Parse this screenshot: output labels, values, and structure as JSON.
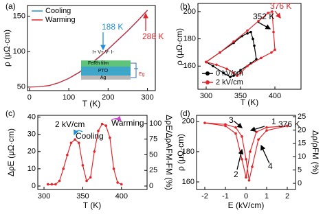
{
  "chart_data": [
    {
      "type": "line",
      "panel_label": "(a)",
      "x_label": "T (K)",
      "y_label": "ρ (μΩ·cm)",
      "xlim": [
        -5,
        320
      ],
      "ylim": [
        45,
        165
      ],
      "xticks": [
        0,
        100,
        200,
        300
      ],
      "yticks": [
        50,
        100,
        150
      ],
      "legend": "upper left",
      "series": [
        {
          "name": "Cooling",
          "color": "#1f8fd6",
          "x": [
            0,
            25,
            50,
            75,
            100,
            125,
            150,
            175,
            200,
            225,
            250,
            275,
            300
          ],
          "values": [
            50,
            50.5,
            52,
            56,
            62,
            70,
            80,
            91,
            103,
            116,
            129,
            143,
            158
          ]
        },
        {
          "name": "Warming",
          "color": "#e0262b",
          "x": [
            0,
            25,
            50,
            75,
            100,
            125,
            150,
            175,
            200,
            225,
            250,
            275,
            300
          ],
          "values": [
            50,
            50.6,
            52.2,
            56.3,
            62.4,
            70.5,
            80.5,
            91.5,
            103.5,
            116.5,
            129.5,
            143.5,
            158.5
          ]
        }
      ],
      "annotations": [
        {
          "text": "188 K",
          "color": "#1f8fd6"
        },
        {
          "text": "288 K",
          "color": "#e0262b"
        }
      ],
      "inset_labels": [
        "I+ V+ V- I-",
        "FeRh film",
        "PTO",
        "Ag",
        "Eg"
      ]
    },
    {
      "type": "line",
      "panel_label": "(b)",
      "x_label": "T (K)",
      "y_label": "ρ (μΩ·cm)",
      "xlim": [
        288,
        438
      ],
      "ylim": [
        143,
        206
      ],
      "xticks": [
        300,
        350,
        400
      ],
      "yticks": [
        160,
        180,
        200
      ],
      "legend": "lower left",
      "markers": true,
      "series": [
        {
          "name": "0 kV/cm",
          "color": "#000000",
          "x": [
            300,
            320,
            340,
            352,
            360,
            365,
            368,
            370,
            373,
            365,
            350,
            340,
            335,
            325,
            310,
            300
          ],
          "values": [
            163,
            170,
            177,
            182,
            184,
            185,
            180,
            175,
            165,
            162,
            157,
            153,
            152,
            155,
            160,
            163
          ]
        },
        {
          "name": "2 kV/cm",
          "color": "#e0262b",
          "x": [
            300,
            320,
            340,
            360,
            376,
            390,
            396,
            398,
            400,
            395,
            380,
            360,
            350,
            345,
            340,
            330,
            315,
            300
          ],
          "values": [
            163,
            170,
            178,
            186,
            193,
            199,
            200,
            185,
            172,
            170,
            166,
            160,
            155,
            153,
            155,
            158,
            161,
            163
          ]
        }
      ],
      "annotations": [
        {
          "text": "352 K",
          "color": "#000000"
        },
        {
          "text": "376 K",
          "color": "#e0262b"
        }
      ]
    },
    {
      "type": "line",
      "panel_label": "(c)",
      "x_label": "T (K)",
      "y_label": "ΔρE (μΩ·cm)",
      "y2_label": "ΔρE/ΔρAFM-FM (%)",
      "xlim": [
        292,
        433
      ],
      "ylim": [
        -2,
        41
      ],
      "y2lim": [
        -5.5,
        113
      ],
      "xticks": [
        300,
        350,
        400
      ],
      "yticks": [
        0,
        10,
        20,
        30,
        40
      ],
      "y2ticks": [
        0,
        25,
        50,
        75,
        100
      ],
      "markers": true,
      "series": [
        {
          "color": "#e0262b",
          "x": [
            305,
            310,
            315,
            320,
            325,
            330,
            335,
            340,
            345,
            350,
            355,
            360,
            365,
            370,
            375,
            380,
            385,
            390,
            395,
            400
          ],
          "values": [
            1,
            1,
            1,
            3,
            10,
            18,
            25,
            27,
            25,
            12,
            3,
            5,
            20,
            32,
            36,
            35,
            28,
            10,
            2,
            1
          ]
        }
      ],
      "annotations": [
        {
          "text": "2 kV/cm",
          "color": "#000000"
        },
        {
          "text": "Cooling",
          "color": "#000000"
        },
        {
          "text": "Warming",
          "color": "#000000"
        }
      ]
    },
    {
      "type": "line",
      "panel_label": "(d)",
      "x_label": "E (kV/cm)",
      "y_label": "ρ (μΩ·cm)",
      "y2_label": "Δρ/ρFM (%)",
      "xlim": [
        -2.4,
        2.4
      ],
      "ylim": [
        155,
        204
      ],
      "y2lim": [
        -2.3,
        25.5
      ],
      "xticks": [
        -2,
        -1,
        0,
        1,
        2
      ],
      "yticks": [
        160,
        180,
        200
      ],
      "y2ticks": [
        0,
        5,
        10,
        15,
        20,
        25
      ],
      "markers": true,
      "series": [
        {
          "color": "#e0262b",
          "x": [
            2,
            1,
            0.5,
            0.2,
            0,
            -0.2,
            -0.5,
            -1,
            -2,
            -1,
            -0.5,
            -0.2,
            0,
            0.15,
            0.3,
            0.6,
            1,
            2
          ],
          "values": [
            197,
            196,
            193,
            180,
            163,
            175,
            192,
            197,
            199,
            198,
            196,
            190,
            175,
            161,
            170,
            188,
            194,
            197
          ]
        }
      ],
      "annotations": [
        {
          "text": "376 K",
          "color": "#000000"
        },
        {
          "text": "1",
          "color": "#000000"
        },
        {
          "text": "2",
          "color": "#000000"
        },
        {
          "text": "3",
          "color": "#000000"
        },
        {
          "text": "4",
          "color": "#000000"
        }
      ]
    }
  ]
}
